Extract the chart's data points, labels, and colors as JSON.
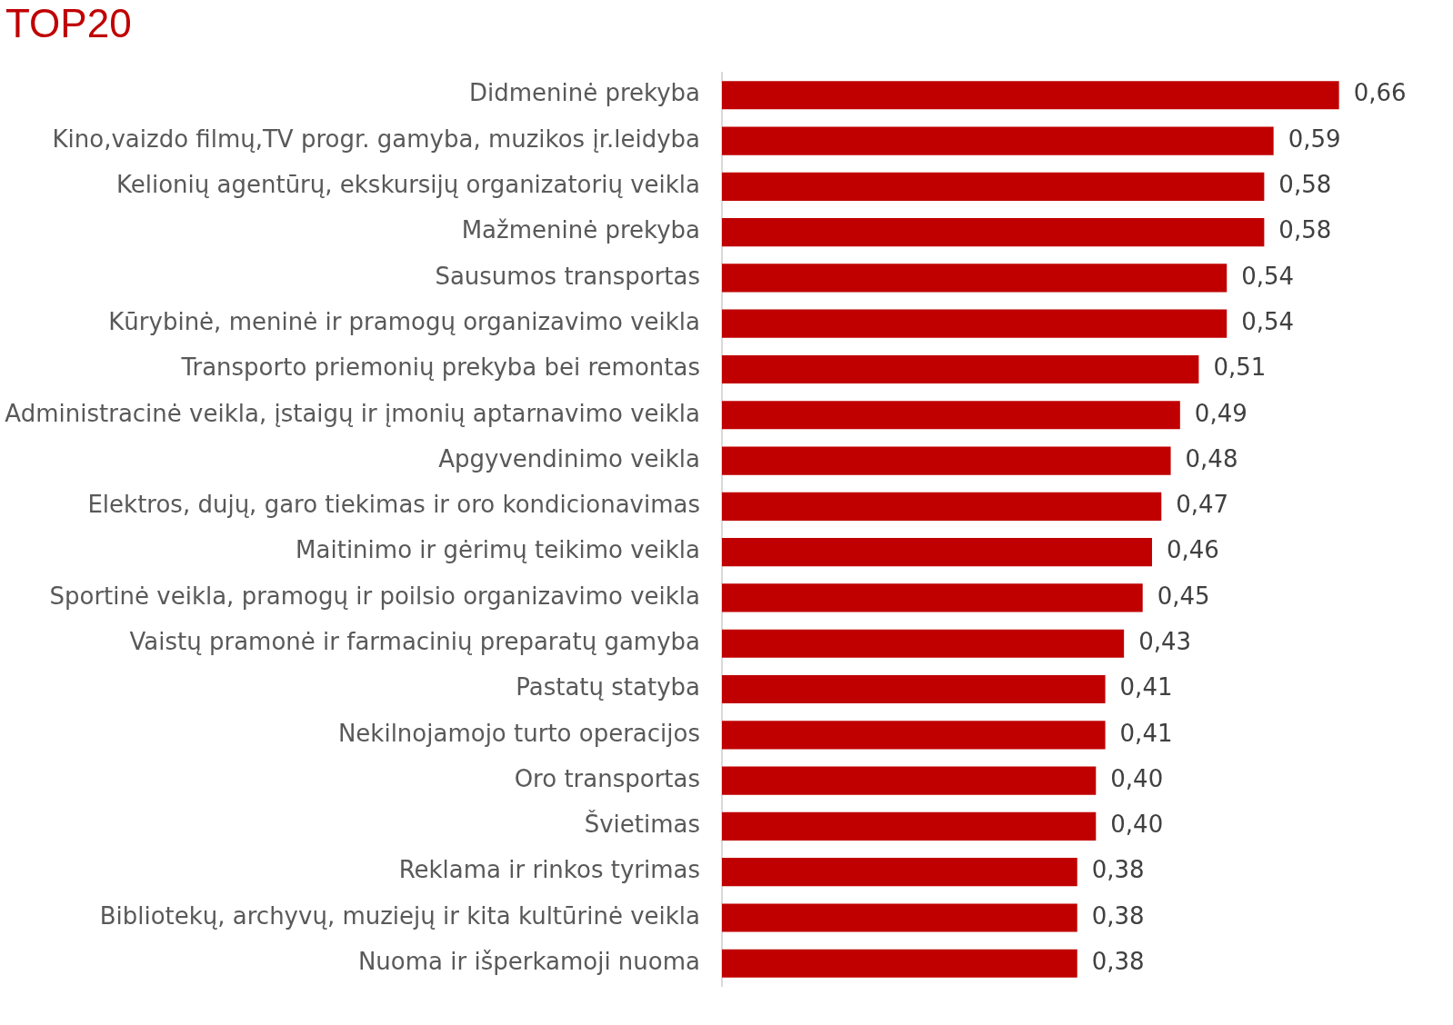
{
  "chart_data": {
    "type": "bar",
    "orientation": "horizontal",
    "title": "TOP20",
    "categories": [
      "Didmeninė prekyba",
      "Kino,vaizdo filmų,TV progr. gamyba, muzikos įr.leidyba",
      "Kelionių agentūrų, ekskursijų organizatorių veikla",
      "Mažmeninė prekyba",
      "Sausumos transportas",
      "Kūrybinė, meninė ir pramogų organizavimo veikla",
      "Transporto priemonių prekyba bei remontas",
      "Administracinė veikla, įstaigų ir įmonių aptarnavimo veikla",
      "Apgyvendinimo veikla",
      "Elektros, dujų, garo tiekimas ir oro kondicionavimas",
      "Maitinimo ir gėrimų teikimo veikla",
      "Sportinė veikla, pramogų ir poilsio organizavimo veikla",
      "Vaistų pramonė ir farmacinių preparatų gamyba",
      "Pastatų statyba",
      "Nekilnojamojo turto operacijos",
      "Oro transportas",
      "Švietimas",
      "Reklama ir rinkos tyrimas",
      "Bibliotekų, archyvų, muziejų ir kita kultūrinė veikla",
      "Nuoma ir išperkamoji nuoma"
    ],
    "values": [
      0.66,
      0.59,
      0.58,
      0.58,
      0.54,
      0.54,
      0.51,
      0.49,
      0.48,
      0.47,
      0.46,
      0.45,
      0.43,
      0.41,
      0.41,
      0.4,
      0.4,
      0.38,
      0.38,
      0.38
    ],
    "value_labels": [
      "0,66",
      "0,59",
      "0,58",
      "0,58",
      "0,54",
      "0,54",
      "0,51",
      "0,49",
      "0,48",
      "0,47",
      "0,46",
      "0,45",
      "0,43",
      "0,41",
      "0,41",
      "0,40",
      "0,40",
      "0,38",
      "0,38",
      "0,38"
    ],
    "color": "#c00000"
  }
}
